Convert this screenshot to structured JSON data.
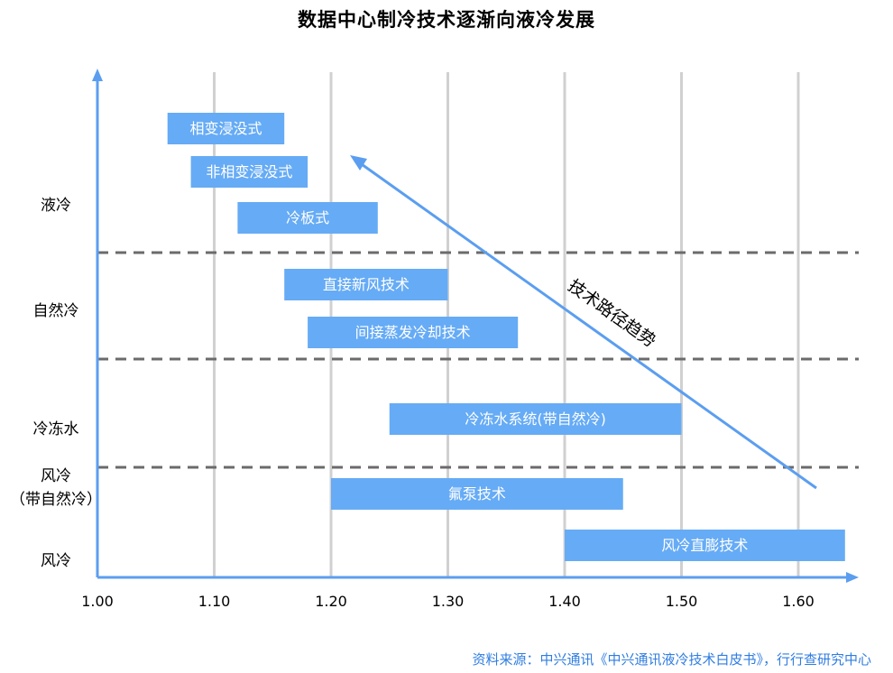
{
  "title": "数据中心制冷技术逐渐向液冷发展",
  "source": "资料来源：中兴通讯《中兴通讯液冷技术白皮书》，行行查研究中心",
  "chart_data": {
    "type": "bar",
    "orientation": "horizontal-range",
    "xlim": [
      1.0,
      1.65
    ],
    "x_ticks": [
      "1.00",
      "1.10",
      "1.20",
      "1.30",
      "1.40",
      "1.50",
      "1.60"
    ],
    "y_categories": [
      {
        "label": [
          "液冷"
        ]
      },
      {
        "label": [
          "自然冷"
        ]
      },
      {
        "label": [
          "冷冻水"
        ]
      },
      {
        "label": [
          "风冷",
          "（带自然冷）"
        ]
      },
      {
        "label": [
          "风冷"
        ]
      }
    ],
    "bars": [
      {
        "label": "相变浸没式",
        "start": 1.06,
        "end": 1.16,
        "category": "液冷"
      },
      {
        "label": "非相变浸没式",
        "start": 1.08,
        "end": 1.18,
        "category": "液冷"
      },
      {
        "label": "冷板式",
        "start": 1.12,
        "end": 1.24,
        "category": "液冷"
      },
      {
        "label": "直接新风技术",
        "start": 1.16,
        "end": 1.3,
        "category": "自然冷"
      },
      {
        "label": "间接蒸发冷却技术",
        "start": 1.18,
        "end": 1.36,
        "category": "自然冷"
      },
      {
        "label": "冷冻水系统(带自然冷)",
        "start": 1.25,
        "end": 1.5,
        "category": "冷冻水"
      },
      {
        "label": "氟泵技术",
        "start": 1.2,
        "end": 1.45,
        "category": "风冷（带自然冷）"
      },
      {
        "label": "风冷直膨技术",
        "start": 1.4,
        "end": 1.64,
        "category": "风冷"
      }
    ],
    "annotation": "技术路径趋势",
    "grid": true,
    "colors": {
      "bar": "#66abf5",
      "axis": "#5b9ef0",
      "grid": "#d0d0d0",
      "separator": "#6b6b6b",
      "source": "#2f7de1"
    }
  }
}
